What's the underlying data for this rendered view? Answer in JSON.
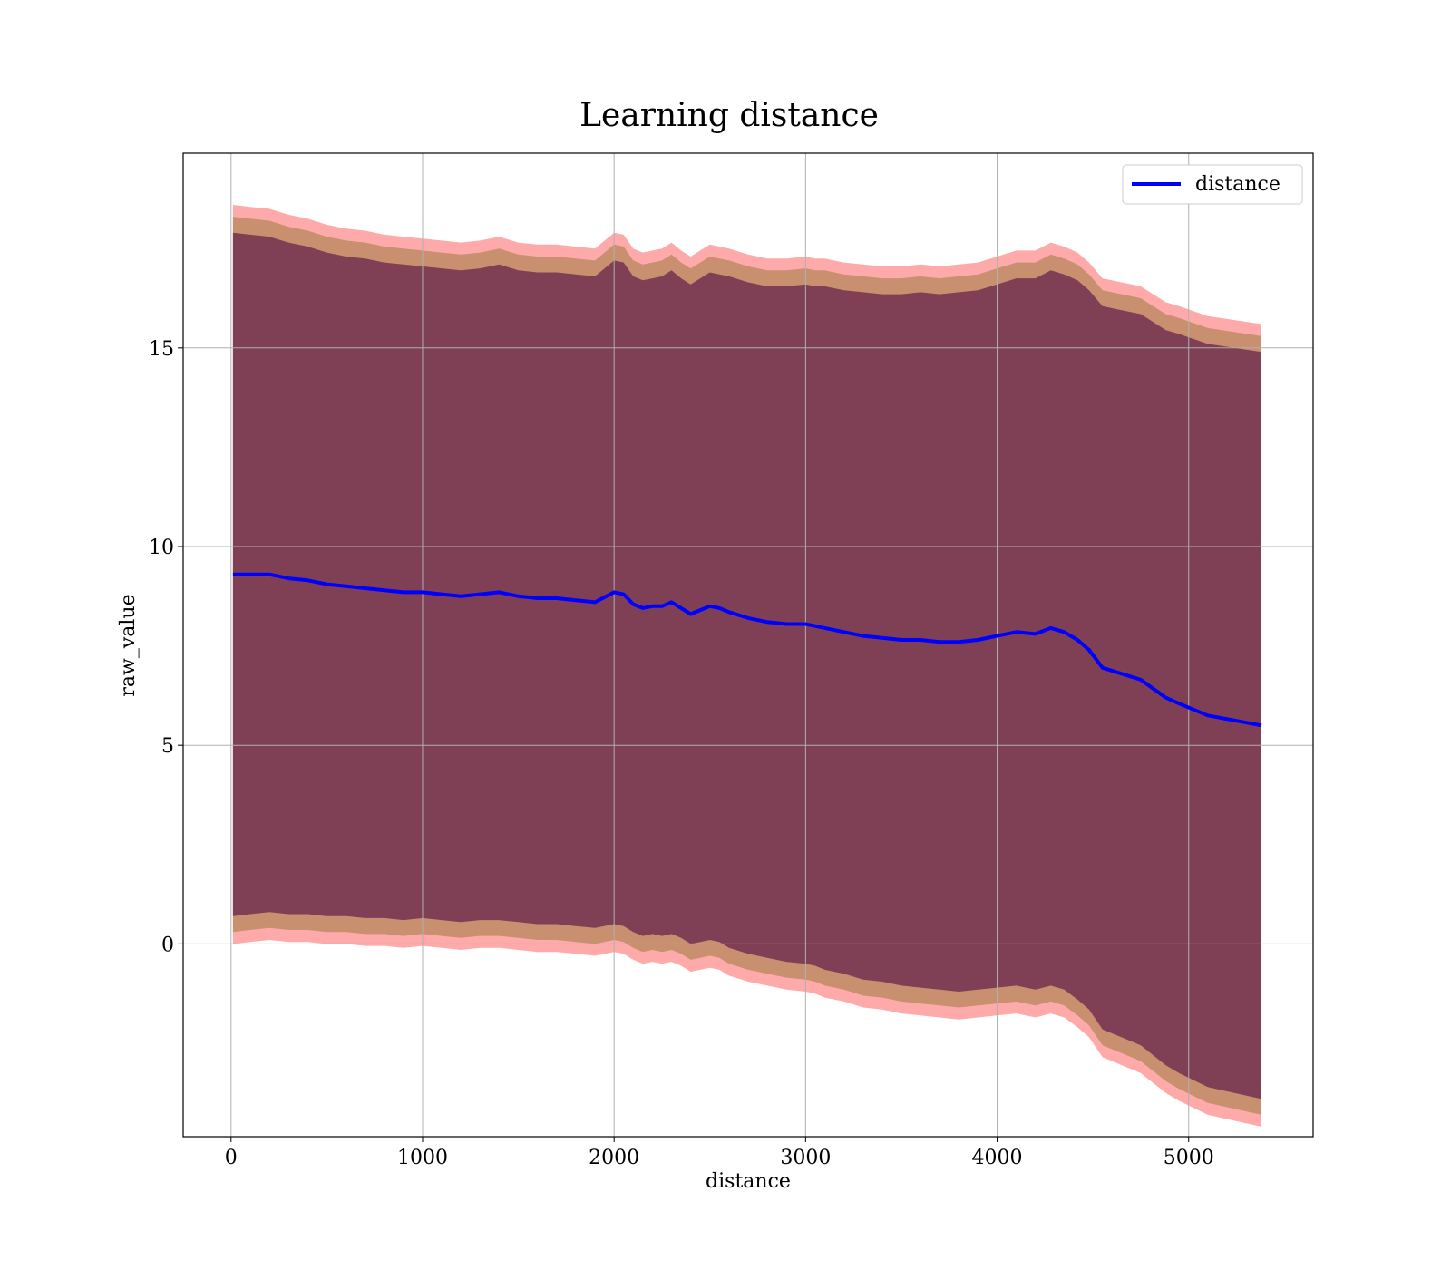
{
  "chart_data": {
    "type": "line",
    "title": "Learning distance",
    "xlabel": "distance",
    "ylabel": "raw_value",
    "xlim": [
      -250,
      5650
    ],
    "ylim": [
      -4.85,
      19.9
    ],
    "xticks": [
      0,
      1000,
      2000,
      3000,
      4000,
      5000
    ],
    "yticks": [
      0,
      5,
      10,
      15
    ],
    "grid": true,
    "legend_position": "top-right",
    "colors": {
      "line": "#0000ff",
      "band_inner": "#7f3f55",
      "band_middle": "#c8906f",
      "band_outer": "#ffaaaa",
      "grid": "#b0b0b0"
    },
    "series": [
      {
        "name": "distance",
        "x": [
          10,
          100,
          200,
          300,
          400,
          500,
          600,
          700,
          800,
          900,
          1000,
          1100,
          1200,
          1300,
          1400,
          1500,
          1600,
          1700,
          1800,
          1900,
          2000,
          2050,
          2100,
          2150,
          2200,
          2250,
          2300,
          2350,
          2400,
          2450,
          2500,
          2550,
          2600,
          2700,
          2800,
          2900,
          3000,
          3050,
          3100,
          3200,
          3300,
          3400,
          3500,
          3600,
          3700,
          3800,
          3900,
          4000,
          4100,
          4200,
          4280,
          4350,
          4420,
          4480,
          4550,
          4650,
          4750,
          4880,
          4950,
          5100,
          5380
        ],
        "y": [
          9.3,
          9.3,
          9.3,
          9.2,
          9.15,
          9.05,
          9.0,
          8.95,
          8.9,
          8.85,
          8.85,
          8.8,
          8.75,
          8.8,
          8.85,
          8.75,
          8.7,
          8.7,
          8.65,
          8.6,
          8.85,
          8.8,
          8.55,
          8.45,
          8.5,
          8.5,
          8.6,
          8.45,
          8.3,
          8.4,
          8.5,
          8.45,
          8.35,
          8.2,
          8.1,
          8.05,
          8.05,
          8.0,
          7.95,
          7.85,
          7.75,
          7.7,
          7.65,
          7.65,
          7.6,
          7.6,
          7.65,
          7.75,
          7.85,
          7.8,
          7.95,
          7.85,
          7.65,
          7.4,
          6.95,
          6.8,
          6.65,
          6.2,
          6.05,
          5.75,
          5.5
        ],
        "band_inner": [
          8.6,
          8.55,
          8.5,
          8.45,
          8.4,
          8.35,
          8.3,
          8.3,
          8.25,
          8.25,
          8.2,
          8.2,
          8.2,
          8.2,
          8.25,
          8.2,
          8.2,
          8.2,
          8.2,
          8.2,
          8.35,
          8.35,
          8.25,
          8.25,
          8.25,
          8.3,
          8.35,
          8.3,
          8.3,
          8.35,
          8.4,
          8.4,
          8.45,
          8.45,
          8.45,
          8.5,
          8.55,
          8.55,
          8.6,
          8.6,
          8.65,
          8.65,
          8.7,
          8.75,
          8.75,
          8.8,
          8.8,
          8.85,
          8.9,
          8.95,
          9.0,
          9.0,
          9.05,
          9.05,
          9.1,
          9.15,
          9.2,
          9.25,
          9.3,
          9.35,
          9.4
        ],
        "band_middle": [
          9.0,
          8.95,
          8.9,
          8.85,
          8.8,
          8.75,
          8.7,
          8.7,
          8.65,
          8.65,
          8.6,
          8.6,
          8.6,
          8.6,
          8.65,
          8.6,
          8.6,
          8.6,
          8.6,
          8.6,
          8.75,
          8.75,
          8.65,
          8.65,
          8.65,
          8.7,
          8.75,
          8.7,
          8.7,
          8.75,
          8.8,
          8.8,
          8.85,
          8.85,
          8.85,
          8.9,
          8.95,
          8.95,
          9.0,
          9.0,
          9.05,
          9.05,
          9.1,
          9.15,
          9.15,
          9.2,
          9.2,
          9.25,
          9.3,
          9.35,
          9.4,
          9.4,
          9.45,
          9.45,
          9.5,
          9.55,
          9.6,
          9.65,
          9.7,
          9.75,
          9.8
        ],
        "band_outer": [
          9.3,
          9.25,
          9.2,
          9.15,
          9.1,
          9.05,
          9.0,
          9.0,
          8.95,
          8.95,
          8.9,
          8.9,
          8.9,
          8.9,
          8.95,
          8.9,
          8.9,
          8.9,
          8.9,
          8.9,
          9.05,
          9.05,
          8.95,
          8.95,
          8.95,
          9.0,
          9.05,
          9.0,
          9.0,
          9.05,
          9.1,
          9.1,
          9.15,
          9.15,
          9.15,
          9.2,
          9.25,
          9.25,
          9.3,
          9.3,
          9.35,
          9.35,
          9.4,
          9.45,
          9.45,
          9.5,
          9.5,
          9.55,
          9.6,
          9.65,
          9.7,
          9.7,
          9.75,
          9.75,
          9.8,
          9.85,
          9.9,
          9.95,
          10.0,
          10.05,
          10.1
        ]
      }
    ]
  }
}
